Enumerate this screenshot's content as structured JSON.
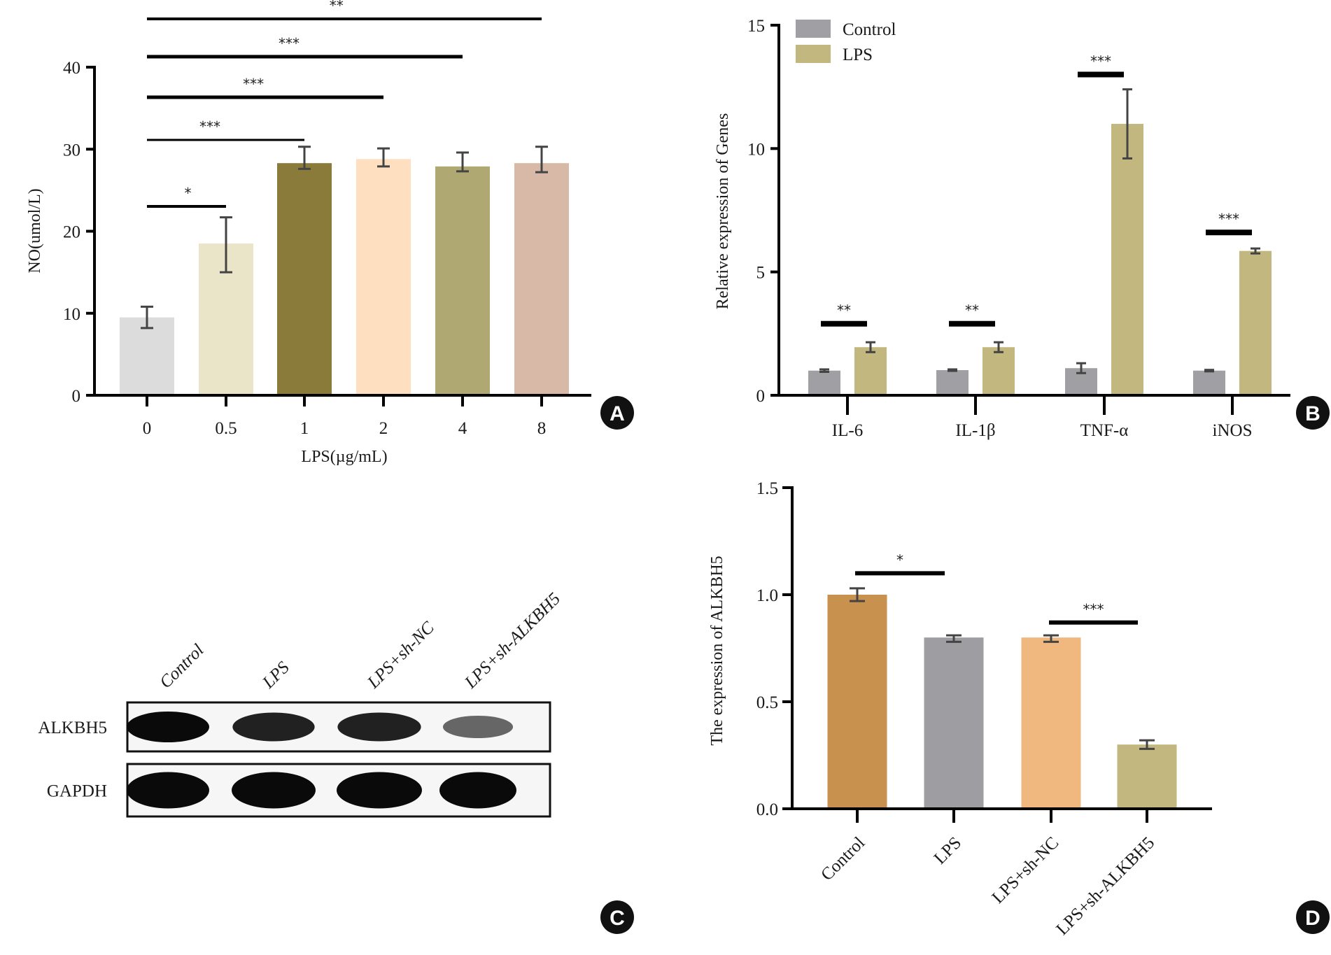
{
  "figure": {
    "panels": [
      "A",
      "B",
      "C",
      "D"
    ]
  },
  "chart_data": [
    {
      "panel": "A",
      "type": "bar",
      "title": "",
      "xlabel": "LPS(µg/mL)",
      "ylabel": "NO(umol/L)",
      "ylim": [
        0,
        40
      ],
      "yticks": [
        0,
        10,
        20,
        30,
        40
      ],
      "categories": [
        "0",
        "0.5",
        "1",
        "2",
        "4",
        "8"
      ],
      "values": [
        9.5,
        18.5,
        28.3,
        28.8,
        27.9,
        28.3
      ],
      "error_low": [
        8.2,
        15.0,
        27.6,
        27.9,
        27.3,
        27.2
      ],
      "error_high": [
        10.8,
        21.7,
        30.3,
        30.1,
        29.6,
        30.3
      ],
      "colors": [
        "#DCDCDC",
        "#EAE4C8",
        "#8A7B3A",
        "#FEDFC0",
        "#AFA873",
        "#D8B9A8"
      ],
      "significance": [
        {
          "from": "0",
          "to": "0.5",
          "label": "*"
        },
        {
          "from": "0",
          "to": "1",
          "label": "***"
        },
        {
          "from": "0",
          "to": "2",
          "label": "***"
        },
        {
          "from": "0",
          "to": "4",
          "label": "***"
        },
        {
          "from": "0",
          "to": "8",
          "label": "**"
        }
      ],
      "grid": false
    },
    {
      "panel": "B",
      "type": "bar",
      "title": "",
      "xlabel": "",
      "ylabel": "Relative expression of Genes",
      "ylim": [
        0,
        15
      ],
      "yticks": [
        0,
        5,
        10,
        15
      ],
      "categories": [
        "IL-6",
        "IL-1β",
        "TNF-α",
        "iNOS"
      ],
      "series": [
        {
          "name": "Control",
          "color": "#A0A0A4",
          "values": [
            1.0,
            1.02,
            1.1,
            1.0
          ],
          "error_low": [
            0.95,
            0.99,
            0.9,
            0.97
          ],
          "error_high": [
            1.05,
            1.05,
            1.3,
            1.03
          ]
        },
        {
          "name": "LPS",
          "color": "#C2B77E",
          "values": [
            1.95,
            1.95,
            11.0,
            5.85
          ],
          "error_low": [
            1.75,
            1.75,
            9.6,
            5.75
          ],
          "error_high": [
            2.15,
            2.15,
            12.4,
            5.95
          ]
        }
      ],
      "significance": [
        {
          "category": "IL-6",
          "label": "**",
          "y": 2.9
        },
        {
          "category": "IL-1β",
          "label": "**",
          "y": 2.9
        },
        {
          "category": "TNF-α",
          "label": "***",
          "y": 13.0
        },
        {
          "category": "iNOS",
          "label": "***",
          "y": 6.6
        }
      ],
      "legend": {
        "position": "top-left",
        "entries": [
          "Control",
          "LPS"
        ]
      },
      "grid": false
    },
    {
      "panel": "D",
      "type": "bar",
      "title": "",
      "xlabel": "",
      "ylabel": "The expression of ALKBH5",
      "ylim": [
        0,
        1.5
      ],
      "yticks": [
        "0.0",
        "0.5",
        "1.0",
        "1.5"
      ],
      "categories": [
        "Control",
        "LPS",
        "LPS+sh-NC",
        "LPS+sh-ALKBH5"
      ],
      "values": [
        1.0,
        0.8,
        0.8,
        0.3
      ],
      "error_low": [
        0.97,
        0.78,
        0.78,
        0.28
      ],
      "error_high": [
        1.03,
        0.81,
        0.81,
        0.32
      ],
      "colors": [
        "#C8914E",
        "#9E9EA2",
        "#F0B77E",
        "#C2B77E"
      ],
      "significance": [
        {
          "from": "Control",
          "to": "LPS",
          "label": "*",
          "y": 1.1
        },
        {
          "from": "LPS+sh-NC",
          "to": "LPS+sh-ALKBH5",
          "label": "***",
          "y": 0.87
        }
      ],
      "grid": false
    }
  ],
  "western_blot": {
    "panel": "C",
    "lanes": [
      "Control",
      "LPS",
      "LPS+sh-NC",
      "LPS+sh-ALKBH5"
    ],
    "rows": [
      {
        "label": "ALKBH5",
        "band_intensity": [
          1.0,
          0.85,
          0.85,
          0.4
        ]
      },
      {
        "label": "GAPDH",
        "band_intensity": [
          1.0,
          1.0,
          1.0,
          1.0
        ]
      }
    ]
  }
}
